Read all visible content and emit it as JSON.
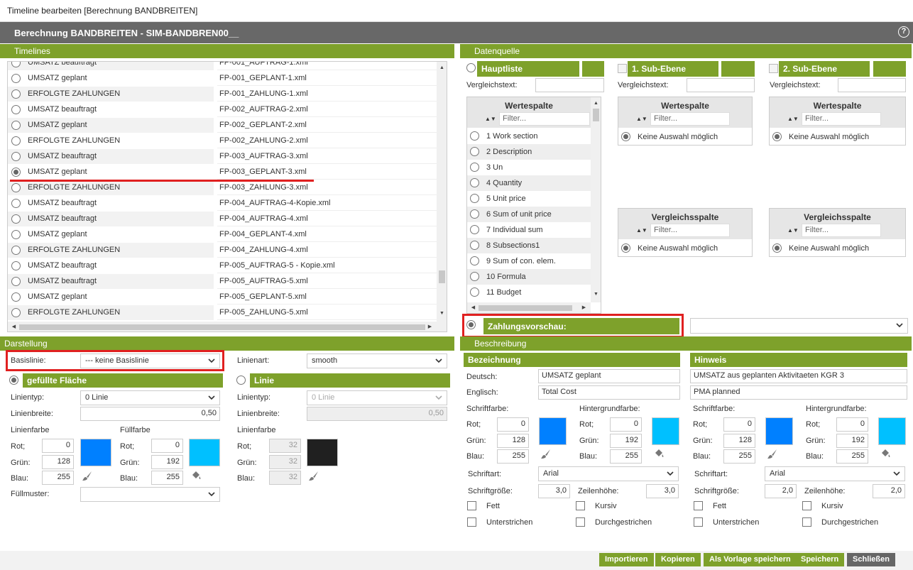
{
  "window": {
    "title": "Timeline bearbeiten [Berechnung BANDBREITEN]"
  },
  "header": {
    "title": "Berechnung BANDBREITEN - SIM-BANDBREN00__",
    "help_icon": "?"
  },
  "timelines": {
    "title": "Timelines",
    "partial_top": {
      "name": "UMSATZ beauftragt",
      "file": "FP-001_AUFTRAG-1.xml"
    },
    "rows": [
      {
        "name": "UMSATZ geplant",
        "file": "FP-001_GEPLANT-1.xml",
        "selected": false
      },
      {
        "name": "ERFOLGTE ZAHLUNGEN",
        "file": "FP-001_ZAHLUNG-1.xml",
        "selected": false
      },
      {
        "name": "UMSATZ beauftragt",
        "file": "FP-002_AUFTRAG-2.xml",
        "selected": false
      },
      {
        "name": "UMSATZ geplant",
        "file": "FP-002_GEPLANT-2.xml",
        "selected": false
      },
      {
        "name": "ERFOLGTE ZAHLUNGEN",
        "file": "FP-002_ZAHLUNG-2.xml",
        "selected": false
      },
      {
        "name": "UMSATZ beauftragt",
        "file": "FP-003_AUFTRAG-3.xml",
        "selected": false
      },
      {
        "name": "UMSATZ geplant",
        "file": "FP-003_GEPLANT-3.xml",
        "selected": true
      },
      {
        "name": "ERFOLGTE ZAHLUNGEN",
        "file": "FP-003_ZAHLUNG-3.xml",
        "selected": false
      },
      {
        "name": "UMSATZ beauftragt",
        "file": "FP-004_AUFTRAG-4-Kopie.xml",
        "selected": false
      },
      {
        "name": "UMSATZ beauftragt",
        "file": "FP-004_AUFTRAG-4.xml",
        "selected": false
      },
      {
        "name": "UMSATZ geplant",
        "file": "FP-004_GEPLANT-4.xml",
        "selected": false
      },
      {
        "name": "ERFOLGTE ZAHLUNGEN",
        "file": "FP-004_ZAHLUNG-4.xml",
        "selected": false
      },
      {
        "name": "UMSATZ beauftragt",
        "file": "FP-005_AUFTRAG-5 - Kopie.xml",
        "selected": false
      },
      {
        "name": "UMSATZ beauftragt",
        "file": "FP-005_AUFTRAG-5.xml",
        "selected": false
      },
      {
        "name": "UMSATZ geplant",
        "file": "FP-005_GEPLANT-5.xml",
        "selected": false
      },
      {
        "name": "ERFOLGTE ZAHLUNGEN",
        "file": "FP-005_ZAHLUNG-5.xml",
        "selected": false
      }
    ],
    "scroll_fraction": 0.88
  },
  "datenquelle": {
    "title": "Datenquelle",
    "hauptliste": "Hauptliste",
    "sub1": "1. Sub-Ebene",
    "sub2": "2. Sub-Ebene",
    "vergleichstext": "Vergleichstext:",
    "wertespalte": "Wertespalte",
    "vergleichsspalte": "Vergleichsspalte",
    "filter_placeholder": "Filter...",
    "sort_icon": "▲▼",
    "keine_auswahl": "Keine Auswahl möglich",
    "columns": [
      "1 Work section",
      "2 Description",
      "3 Un",
      "4 Quantity",
      "5 Unit price",
      "6 Sum of unit price",
      "7 Individual sum",
      "8 Subsections1",
      "9 Sum of con. elem.",
      "10 Formula",
      "11 Budget"
    ],
    "zahlungsvorschau": "Zahlungsvorschau:"
  },
  "darstellung": {
    "title": "Darstellung",
    "basislinie_label": "Basislinie:",
    "basislinie_value": "--- keine Basislinie",
    "linienart_label": "Linienart:",
    "linienart_value": "smooth",
    "gefuellt": "gefüllte Fläche",
    "linie": "Linie",
    "linientyp_label": "Linientyp:",
    "linientyp_value": "0 Linie",
    "linienbreite_label": "Linienbreite:",
    "linienbreite_value": "0,50",
    "linienfarbe": "Linienfarbe",
    "fuellfarbe": "Füllfarbe",
    "rot": "Rot;",
    "gruen": "Grün:",
    "blau": "Blau:",
    "fill_line": {
      "r": "0",
      "g": "128",
      "b": "255",
      "color": "#0080ff"
    },
    "fill_fill": {
      "r": "0",
      "g": "192",
      "b": "255",
      "color": "#00c0ff"
    },
    "line_line": {
      "r": "32",
      "g": "32",
      "b": "32",
      "color": "#202020"
    },
    "fuellmuster": "Füllmuster:"
  },
  "beschreibung": {
    "title": "Beschreibung",
    "bezeichnung": {
      "title": "Bezeichnung",
      "deutsch": "UMSATZ geplant",
      "englisch": "Total Cost",
      "font_rgb": {
        "r": "0",
        "g": "128",
        "b": "255",
        "color": "#0080ff"
      },
      "bg_rgb": {
        "r": "0",
        "g": "192",
        "b": "255",
        "color": "#00c0ff"
      },
      "font": "Arial",
      "size": "3,0",
      "line_height": "3,0"
    },
    "hinweis": {
      "title": "Hinweis",
      "deutsch": "UMSATZ aus geplanten Aktivitaeten KGR 3",
      "englisch": "PMA planned",
      "font_rgb": {
        "r": "0",
        "g": "128",
        "b": "255",
        "color": "#0080ff"
      },
      "bg_rgb": {
        "r": "0",
        "g": "192",
        "b": "255",
        "color": "#00c0ff"
      },
      "font": "Arial",
      "size": "2,0",
      "line_height": "2,0"
    },
    "deutsch_label": "Deutsch:",
    "englisch_label": "Englisch:",
    "schriftfarbe": "Schriftfarbe:",
    "hintergrundfarbe": "Hintergrundfarbe:",
    "rot": "Rot;",
    "gruen": "Grün:",
    "blau": "Blau:",
    "schriftart": "Schriftart:",
    "schriftgroesse": "Schriftgröße:",
    "zeilenhoehe": "Zeilenhöhe:",
    "fett": "Fett",
    "kursiv": "Kursiv",
    "unterstrichen": "Unterstrichen",
    "durchgestrichen": "Durchgestrichen"
  },
  "footer": {
    "importieren": "Importieren",
    "kopieren": "Kopieren",
    "vorlage": "Als Vorlage speichern",
    "speichern": "Speichern",
    "schliessen": "Schließen"
  },
  "colors": {
    "green": "#7ea12b",
    "header_gray": "#686868",
    "highlight_red": "#e02020"
  }
}
